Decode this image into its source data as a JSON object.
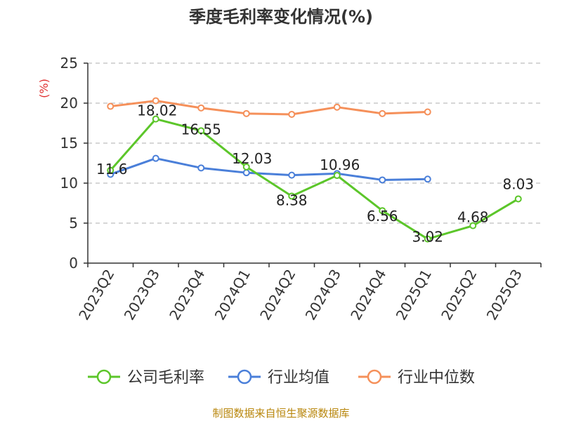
{
  "chart_data": {
    "type": "line",
    "title": "季度毛利率变化情况(%)",
    "ylabel": "(%)",
    "ylim": [
      0,
      25
    ],
    "yticks": [
      0,
      5,
      10,
      15,
      20,
      25
    ],
    "grid": true,
    "legend_position": "bottom",
    "categories": [
      "2023Q2",
      "2023Q3",
      "2023Q4",
      "2024Q1",
      "2024Q2",
      "2024Q3",
      "2024Q4",
      "2025Q1",
      "2025Q2",
      "2025Q3"
    ],
    "series": [
      {
        "name": "公司毛利率",
        "color": "#5cc62a",
        "values": [
          11.6,
          18.02,
          16.55,
          12.03,
          8.38,
          10.96,
          6.56,
          3.02,
          4.68,
          8.03
        ],
        "labels": [
          "11.6",
          "18.02",
          "16.55",
          "12.03",
          "8.38",
          "10.96",
          "6.56",
          "3.02",
          "4.68",
          "8.03"
        ]
      },
      {
        "name": "行业均值",
        "color": "#4a7fd9",
        "values": [
          11.1,
          13.1,
          11.9,
          11.3,
          11.0,
          11.2,
          10.4,
          10.5,
          null,
          null
        ]
      },
      {
        "name": "行业中位数",
        "color": "#f5905a",
        "values": [
          19.6,
          20.3,
          19.4,
          18.7,
          18.6,
          19.5,
          18.7,
          18.9,
          null,
          null
        ]
      }
    ]
  },
  "source": "制图数据来自恒生聚源数据库"
}
